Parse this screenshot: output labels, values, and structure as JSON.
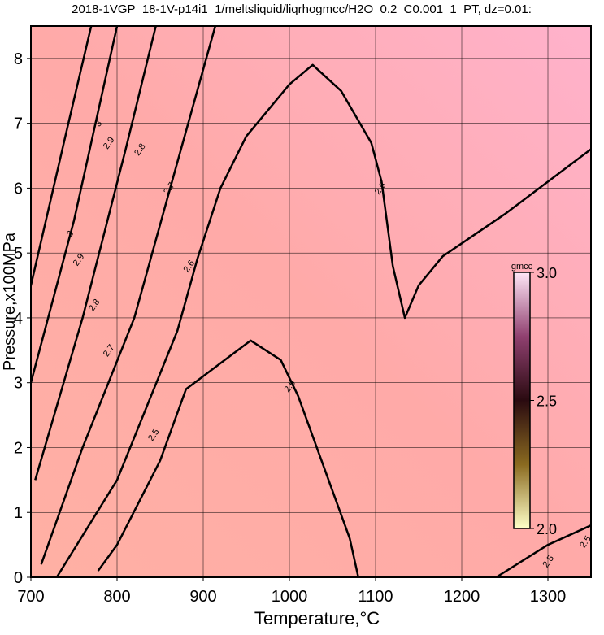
{
  "chart_data": {
    "type": "contour",
    "title": "2018-1VGP_18-1V-p14i1_1/meltsliquid/liqrhogmcc/H2O_0.2_C0.001_1_PT, dz=0.01:",
    "x_label": "Temperature,°C",
    "y_label": "Pressure,x100MPa",
    "xlim": [
      700,
      1350
    ],
    "ylim": [
      0,
      8.5
    ],
    "xticks": [
      700,
      800,
      900,
      1000,
      1100,
      1200,
      1300
    ],
    "yticks": [
      0,
      1,
      2,
      3,
      4,
      5,
      6,
      7,
      8
    ],
    "grid": true,
    "line_color": "#000000",
    "contours": [
      {
        "x": [
          778,
          800,
          850,
          880,
          920,
          955,
          990,
          1010,
          1040,
          1070,
          1080
        ],
        "y": [
          0.1,
          0.5,
          1.8,
          2.9,
          3.3,
          3.65,
          3.35,
          2.8,
          1.7,
          0.6,
          0
        ]
      },
      {
        "x": [
          730,
          800,
          870,
          893,
          920,
          950,
          1000,
          1027,
          1060,
          1095,
          1107,
          1120,
          1134,
          1150,
          1178,
          1250,
          1350
        ],
        "y": [
          0,
          1.5,
          3.8,
          4.9,
          6.0,
          6.8,
          7.6,
          7.9,
          7.5,
          6.7,
          6.1,
          4.8,
          4.0,
          4.5,
          4.95,
          5.6,
          6.6
        ]
      },
      {
        "x": [
          712,
          760,
          820,
          870,
          914
        ],
        "y": [
          0.2,
          2.0,
          4.0,
          6.4,
          8.5
        ]
      },
      {
        "x": [
          705,
          760,
          810,
          845
        ],
        "y": [
          1.5,
          4.0,
          6.6,
          8.5
        ]
      },
      {
        "x": [
          700,
          750,
          800
        ],
        "y": [
          3.0,
          5.5,
          8.5
        ]
      },
      {
        "x": [
          700,
          740,
          770
        ],
        "y": [
          4.5,
          6.8,
          8.5
        ]
      },
      {
        "x": [
          1240,
          1300,
          1350
        ],
        "y": [
          0,
          0.5,
          0.8
        ]
      }
    ],
    "contour_labels": [
      {
        "x": 842,
        "y": 2.2,
        "value": 2.5
      },
      {
        "x": 1000,
        "y": 2.95,
        "value": 2.5
      },
      {
        "x": 883,
        "y": 4.8,
        "value": 2.6
      },
      {
        "x": 1105,
        "y": 6.0,
        "value": 2.6
      },
      {
        "x": 790,
        "y": 3.5,
        "value": 2.7
      },
      {
        "x": 860,
        "y": 6.0,
        "value": 2.7
      },
      {
        "x": 773,
        "y": 4.2,
        "value": 2.8
      },
      {
        "x": 826,
        "y": 6.6,
        "value": 2.8
      },
      {
        "x": 755,
        "y": 4.9,
        "value": 2.9
      },
      {
        "x": 790,
        "y": 6.7,
        "value": 2.9
      },
      {
        "x": 745,
        "y": 5.3,
        "value": 3
      },
      {
        "x": 778,
        "y": 7.0,
        "value": 3
      },
      {
        "x": 1300,
        "y": 0.25,
        "value": 2.5
      },
      {
        "x": 1343,
        "y": 0.55,
        "value": 2.5
      }
    ],
    "colorbar": {
      "label": "gmcc",
      "lim": [
        2,
        3
      ],
      "ticks": [
        {
          "value": 3,
          "label": "3.0"
        },
        {
          "value": 2.5,
          "label": "2.5"
        },
        {
          "value": 2,
          "label": "2.0"
        }
      ],
      "colors": [
        "#ffffc8",
        "#8a6a20",
        "#2a0a10",
        "#904070",
        "#ffe6f6"
      ]
    }
  }
}
